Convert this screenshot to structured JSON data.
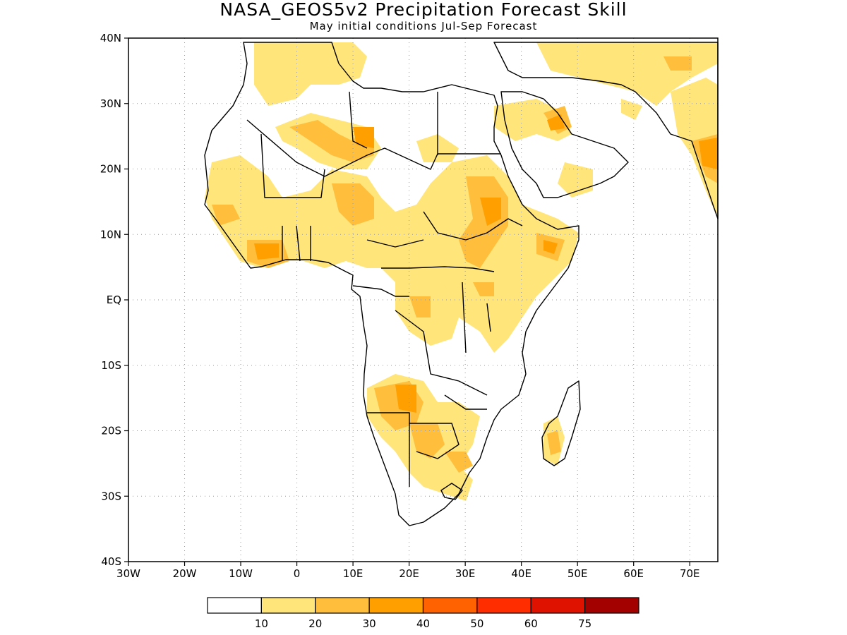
{
  "title": "NASA_GEOS5v2 Precipitation Forecast Skill",
  "subtitle": "May initial conditions  Jul-Sep Forecast",
  "map": {
    "lon_range": [
      -30,
      75
    ],
    "lat_range": [
      -40,
      40
    ],
    "grid": "dotted",
    "lat_labels": [
      {
        "lat": 40,
        "label": "40N"
      },
      {
        "lat": 30,
        "label": "30N"
      },
      {
        "lat": 20,
        "label": "20N"
      },
      {
        "lat": 10,
        "label": "10N"
      },
      {
        "lat": 0,
        "label": "EQ"
      },
      {
        "lat": -10,
        "label": "10S"
      },
      {
        "lat": -20,
        "label": "20S"
      },
      {
        "lat": -30,
        "label": "30S"
      },
      {
        "lat": -40,
        "label": "40S"
      }
    ],
    "lon_labels": [
      {
        "lon": -30,
        "label": "30W"
      },
      {
        "lon": -20,
        "label": "20W"
      },
      {
        "lon": -10,
        "label": "10W"
      },
      {
        "lon": 0,
        "label": "0"
      },
      {
        "lon": 10,
        "label": "10E"
      },
      {
        "lon": 20,
        "label": "20E"
      },
      {
        "lon": 30,
        "label": "30E"
      },
      {
        "lon": 40,
        "label": "40E"
      },
      {
        "lon": 50,
        "label": "50E"
      },
      {
        "lon": 60,
        "label": "60E"
      },
      {
        "lon": 70,
        "label": "70E"
      }
    ],
    "colors": {
      "c10": "#ffe57a",
      "c20": "#ffbe3c",
      "c30": "#ff9f00",
      "c40": "#ff6200",
      "c50": "#ff2d00",
      "c60": "#df1200",
      "c75": "#a30000"
    }
  },
  "colorbar": {
    "bins": [
      {
        "color": "#ffffff"
      },
      {
        "color": "#ffe57a"
      },
      {
        "color": "#ffbe3c"
      },
      {
        "color": "#ff9f00"
      },
      {
        "color": "#ff6200"
      },
      {
        "color": "#ff2d00"
      },
      {
        "color": "#df1200"
      },
      {
        "color": "#a30000"
      }
    ],
    "labels": [
      "10",
      "20",
      "30",
      "40",
      "50",
      "60",
      "75"
    ]
  }
}
